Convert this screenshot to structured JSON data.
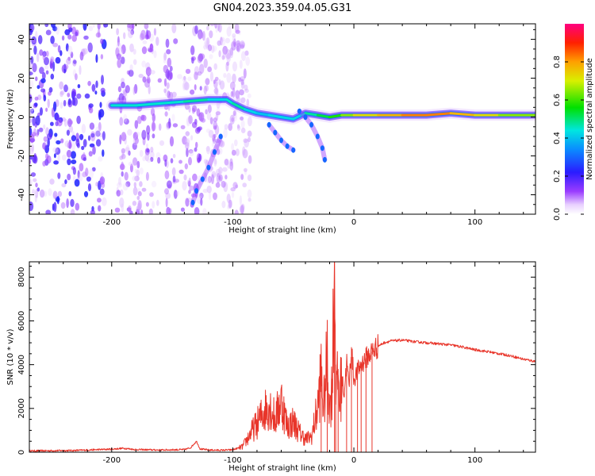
{
  "figure_title": "GN04.2023.359.04.05.G31",
  "chart_data": [
    {
      "type": "heatmap",
      "title": "GN04.2023.359.04.05.G31",
      "xlabel": "Height of straight line (km)",
      "ylabel": "Frequency (Hz)",
      "xlim": [
        -268,
        150
      ],
      "ylim": [
        -50,
        48
      ],
      "xticks": [
        -200,
        -100,
        0,
        100
      ],
      "yticks": [
        -40,
        -20,
        0,
        20,
        40
      ],
      "colorbar": {
        "label": "Normalized spectral amplitude",
        "range": [
          0,
          1
        ],
        "ticks": [
          "0.0",
          "0.2",
          "0.4",
          "0.6",
          "0.8"
        ],
        "colormap": "rainbow (white-violet-blue-cyan-green-yellow-orange-red-magenta)"
      },
      "main_ridge": {
        "x": [
          -200,
          -180,
          -160,
          -140,
          -120,
          -105,
          -100,
          -90,
          -80,
          -70,
          -60,
          -50,
          -40,
          -30,
          -20,
          -10,
          0,
          20,
          40,
          60,
          80,
          100,
          120,
          150
        ],
        "y": [
          6,
          6,
          7,
          8,
          9,
          9,
          7,
          4,
          2,
          1,
          0,
          -1,
          2,
          1,
          0,
          1,
          1,
          1,
          1,
          1,
          2,
          1,
          1,
          1
        ],
        "amplitude": [
          0.4,
          0.5,
          0.4,
          0.5,
          0.45,
          0.4,
          0.5,
          0.45,
          0.4,
          0.4,
          0.45,
          0.4,
          0.45,
          0.5,
          0.55,
          0.6,
          0.7,
          0.75,
          0.8,
          0.85,
          0.8,
          0.75,
          0.7,
          0.6
        ]
      },
      "descending_branch": {
        "x": [
          -110,
          -115,
          -120,
          -125,
          -130,
          -133
        ],
        "y": [
          -10,
          -18,
          -26,
          -32,
          -38,
          -44
        ]
      },
      "secondary_branch": {
        "x": [
          -70,
          -65,
          -60,
          -55,
          -50
        ],
        "y": [
          -4,
          -8,
          -12,
          -15,
          -17
        ]
      },
      "third_branch": {
        "x": [
          -45,
          -40,
          -35,
          -30,
          -26,
          -24
        ],
        "y": [
          3,
          0,
          -4,
          -10,
          -16,
          -22
        ]
      },
      "noise_region_x": [
        -268,
        -100
      ]
    },
    {
      "type": "line",
      "xlabel": "Height of straight line (km)",
      "ylabel": "SNR (10 * v/v)",
      "xlim": [
        -268,
        150
      ],
      "ylim": [
        0,
        8700
      ],
      "xticks": [
        -200,
        -100,
        0,
        100
      ],
      "yticks": [
        0,
        2000,
        4000,
        6000,
        8000
      ],
      "color": "#e8352a",
      "x": [
        -268,
        -230,
        -210,
        -200,
        -190,
        -180,
        -160,
        -140,
        -135,
        -130,
        -127,
        -120,
        -110,
        -100,
        -92,
        -88,
        -85,
        -80,
        -75,
        -70,
        -65,
        -60,
        -55,
        -50,
        -45,
        -40,
        -35,
        -30,
        -27,
        -25,
        -22,
        -20,
        -18,
        -16,
        -15,
        -14,
        -13,
        -12,
        -10,
        -8,
        -6,
        -4,
        -2,
        0,
        3,
        6,
        10,
        15,
        20,
        25,
        30,
        40,
        50,
        60,
        70,
        80,
        90,
        100,
        110,
        120,
        130,
        140,
        150
      ],
      "y": [
        60,
        80,
        120,
        140,
        180,
        120,
        100,
        120,
        200,
        500,
        150,
        100,
        90,
        110,
        250,
        600,
        900,
        1300,
        1800,
        2200,
        1500,
        2400,
        1200,
        1400,
        900,
        600,
        700,
        2000,
        3600,
        2000,
        4200,
        2000,
        3000,
        8700,
        4000,
        2500,
        3800,
        2200,
        3500,
        2600,
        4200,
        3000,
        4800,
        3300,
        3700,
        4000,
        4300,
        4600,
        4850,
        5000,
        5080,
        5120,
        5050,
        5000,
        4950,
        4900,
        4800,
        4680,
        4600,
        4500,
        4400,
        4250,
        4150
      ]
    }
  ]
}
